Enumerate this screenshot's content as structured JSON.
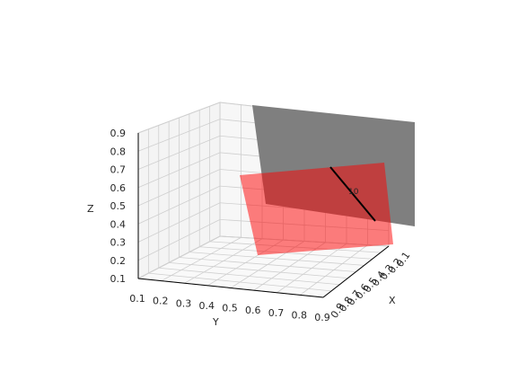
{
  "chart_data": {
    "type": "surface3d",
    "title": "",
    "axes": {
      "x": {
        "label": "X",
        "range": [
          0.1,
          0.9
        ],
        "ticks": [
          "0.1",
          "0.2",
          "0.3",
          "0.4",
          "0.5",
          "0.6",
          "0.7",
          "0.8",
          "0.9"
        ]
      },
      "y": {
        "label": "Y",
        "range": [
          0.1,
          0.9
        ],
        "ticks": [
          "0.1",
          "0.2",
          "0.3",
          "0.4",
          "0.5",
          "0.6",
          "0.7",
          "0.8",
          "0.9"
        ]
      },
      "z": {
        "label": "Z",
        "range": [
          0.1,
          0.9
        ],
        "ticks": [
          "0.1",
          "0.2",
          "0.3",
          "0.4",
          "0.5",
          "0.6",
          "0.7",
          "0.8",
          "0.9"
        ]
      }
    },
    "grid": true,
    "series": [
      {
        "color": "#7f7f7f",
        "opacity": 1.0
      },
      {
        "color": "#ff0000",
        "opacity": 0.5
      }
    ],
    "intersection_line": {
      "color": "#000000",
      "label": "10"
    }
  }
}
